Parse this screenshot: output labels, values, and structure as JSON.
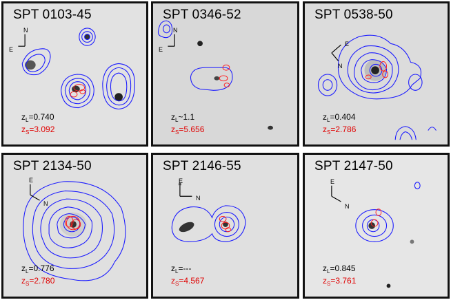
{
  "panels": [
    {
      "name": "SPT 0103-45",
      "zl_sym": "=",
      "zl": "0.740",
      "zs": "3.092",
      "compass": [
        "N",
        "E"
      ]
    },
    {
      "name": "SPT 0346-52",
      "zl_sym": "~",
      "zl": "1.1",
      "zs": "5.656",
      "compass": [
        "N",
        "E"
      ]
    },
    {
      "name": "SPT 0538-50",
      "zl_sym": "=",
      "zl": "0.404",
      "zs": "2.786",
      "compass": [
        "E",
        "N"
      ]
    },
    {
      "name": "SPT 2134-50",
      "zl_sym": "=",
      "zl": "0.776",
      "zs": "2.780",
      "compass": [
        "E",
        "N"
      ]
    },
    {
      "name": "SPT 2146-55",
      "zl_sym": "=",
      "zl": "---",
      "zs": "4.567",
      "compass": [
        "E",
        "N"
      ]
    },
    {
      "name": "SPT 2147-50",
      "zl_sym": "=",
      "zl": "0.845",
      "zs": "3.761",
      "compass": [
        "E",
        "N"
      ]
    }
  ],
  "colors": {
    "contour_blue": "#1a1aff",
    "contour_red": "#ff2020",
    "border": "#111111"
  }
}
